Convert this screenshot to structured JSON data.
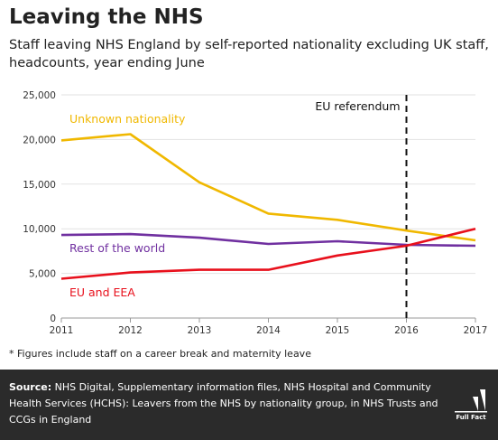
{
  "chart_data": {
    "type": "line",
    "title": "Leaving the NHS",
    "subtitle": "Staff leaving NHS England by self-reported nationality excluding UK staff, headcounts, year ending June",
    "x": [
      2011,
      2012,
      2013,
      2014,
      2015,
      2016,
      2017
    ],
    "xlim": [
      2011,
      2017
    ],
    "ylim": [
      0,
      25000
    ],
    "yticks": [
      0,
      5000,
      10000,
      15000,
      20000,
      25000
    ],
    "ytick_labels": [
      "0",
      "5,000",
      "10,000",
      "15,000",
      "20,000",
      "25,000"
    ],
    "xtick_labels": [
      "2011",
      "2012",
      "2013",
      "2014",
      "2015",
      "2016",
      "2017"
    ],
    "grid": "horizontal",
    "legend": "inline labels",
    "series": [
      {
        "name": "Unknown nationality",
        "color": "#f0b800",
        "values": [
          19900,
          20600,
          15200,
          11700,
          11000,
          9800,
          8700
        ]
      },
      {
        "name": "Rest of the world",
        "color": "#7030a0",
        "values": [
          9300,
          9400,
          9000,
          8300,
          8600,
          8200,
          8100
        ]
      },
      {
        "name": "EU and EEA",
        "color": "#e8101c",
        "values": [
          4400,
          5100,
          5400,
          5400,
          7000,
          8100,
          10000
        ]
      }
    ],
    "annotations": [
      {
        "label": "EU referendum",
        "x": 2016
      }
    ]
  },
  "footnote": "* Figures include staff on a career break and maternity leave",
  "source": {
    "label": "Source:",
    "text": "NHS Digital, Supplementary information files, NHS Hospital and Community Health Services (HCHS): Leavers from the NHS by nationality group, in NHS Trusts and CCGs in England"
  },
  "logo": {
    "icon": "full-fact-logo",
    "text": "Full Fact"
  }
}
